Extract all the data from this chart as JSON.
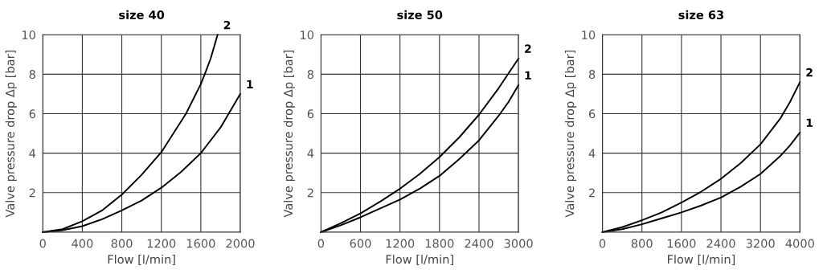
{
  "chart_data": [
    {
      "type": "line",
      "title": "size 40",
      "xlabel": "Flow [l/min]",
      "ylabel": "Valve pressure drop Δp [bar]",
      "xlim": [
        0,
        2000
      ],
      "ylim": [
        0,
        10
      ],
      "xticks": [
        0,
        400,
        800,
        1200,
        1600,
        2000
      ],
      "yticks": [
        2,
        4,
        6,
        8,
        10
      ],
      "grid": true,
      "legend": false,
      "series": [
        {
          "name": "1",
          "color": "#000000",
          "x": [
            0,
            200,
            400,
            600,
            800,
            1000,
            1200,
            1400,
            1600,
            1800,
            2000
          ],
          "values": [
            0,
            0.1,
            0.3,
            0.65,
            1.1,
            1.6,
            2.25,
            3.05,
            4.0,
            5.3,
            7.0
          ]
        },
        {
          "name": "2",
          "color": "#000000",
          "x": [
            0,
            200,
            400,
            600,
            800,
            1000,
            1200,
            1450,
            1600,
            1640,
            1700,
            1770
          ],
          "values": [
            0,
            0.15,
            0.55,
            1.1,
            1.9,
            2.9,
            4.05,
            6.0,
            7.5,
            8.0,
            8.8,
            10
          ]
        }
      ]
    },
    {
      "type": "line",
      "title": "size 50",
      "xlabel": "Flow [l/min]",
      "ylabel": "Valve pressure drop Δp [bar]",
      "xlim": [
        0,
        3000
      ],
      "ylim": [
        0,
        10
      ],
      "xticks": [
        0,
        600,
        1200,
        1800,
        2400,
        3000
      ],
      "yticks": [
        2,
        4,
        6,
        8,
        10
      ],
      "grid": true,
      "legend": false,
      "series": [
        {
          "name": "1",
          "color": "#000000",
          "x": [
            0,
            300,
            600,
            900,
            1200,
            1500,
            1800,
            2100,
            2400,
            2700,
            2850,
            3000
          ],
          "values": [
            0,
            0.35,
            0.75,
            1.2,
            1.65,
            2.2,
            2.85,
            3.7,
            4.65,
            5.9,
            6.6,
            7.45
          ]
        },
        {
          "name": "2",
          "color": "#000000",
          "x": [
            0,
            300,
            600,
            900,
            1200,
            1500,
            1800,
            2100,
            2400,
            2700,
            3000
          ],
          "values": [
            0,
            0.45,
            0.95,
            1.55,
            2.2,
            2.95,
            3.8,
            4.8,
            5.95,
            7.3,
            8.8
          ]
        }
      ]
    },
    {
      "type": "line",
      "title": "size 63",
      "xlabel": "Flow [l/min]",
      "ylabel": "Valve pressure drop Δp [bar]",
      "xlim": [
        0,
        4000
      ],
      "ylim": [
        0,
        10
      ],
      "xticks": [
        0,
        800,
        1600,
        2400,
        3200,
        4000
      ],
      "yticks": [
        2,
        4,
        6,
        8,
        10
      ],
      "grid": true,
      "legend": false,
      "series": [
        {
          "name": "1",
          "color": "#000000",
          "x": [
            0,
            400,
            800,
            1200,
            1600,
            2000,
            2400,
            2800,
            3200,
            3600,
            3800,
            4000
          ],
          "values": [
            0,
            0.15,
            0.4,
            0.7,
            1.0,
            1.35,
            1.75,
            2.3,
            2.95,
            3.85,
            4.4,
            5.05
          ]
        },
        {
          "name": "2",
          "color": "#000000",
          "x": [
            0,
            400,
            800,
            1200,
            1600,
            2000,
            2400,
            2800,
            3200,
            3600,
            3800,
            4000
          ],
          "values": [
            0,
            0.25,
            0.6,
            1.0,
            1.5,
            2.05,
            2.7,
            3.5,
            4.45,
            5.75,
            6.6,
            7.6
          ]
        }
      ]
    }
  ]
}
